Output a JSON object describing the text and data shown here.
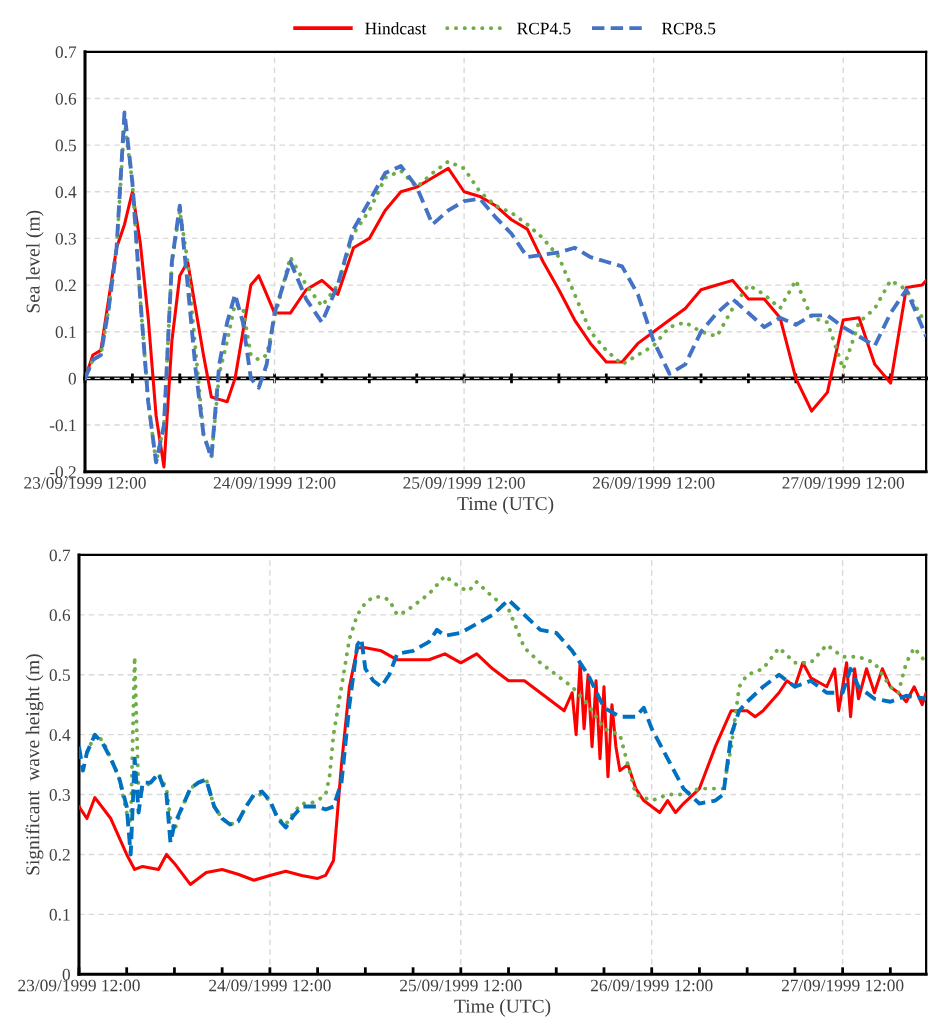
{
  "chart_data": [
    {
      "type": "line",
      "xlabel": "Time (UTC)",
      "ylabel": "Sea level (m)",
      "legend": "top",
      "grid": true,
      "xlim": [
        "1999-09-23T12:00",
        "1999-09-27T22:30"
      ],
      "ylim": [
        -0.2,
        0.7
      ],
      "yticks": [
        -0.2,
        -0.1,
        0,
        0.1,
        0.2,
        0.3,
        0.4,
        0.5,
        0.6,
        0.7
      ],
      "xticks": [
        {
          "value": "1999-09-23T12:00",
          "label": "23/09/1999 12:00"
        },
        {
          "value": "1999-09-23T18:00",
          "label": null
        },
        {
          "value": "1999-09-24T00:00",
          "label": null
        },
        {
          "value": "1999-09-24T06:00",
          "label": null
        },
        {
          "value": "1999-09-24T12:00",
          "label": "24/09/1999 12:00"
        },
        {
          "value": "1999-09-24T18:00",
          "label": null
        },
        {
          "value": "1999-09-25T00:00",
          "label": null
        },
        {
          "value": "1999-09-25T06:00",
          "label": null
        },
        {
          "value": "1999-09-25T12:00",
          "label": "25/09/1999 12:00"
        },
        {
          "value": "1999-09-25T18:00",
          "label": null
        },
        {
          "value": "1999-09-26T00:00",
          "label": null
        },
        {
          "value": "1999-09-26T06:00",
          "label": null
        },
        {
          "value": "1999-09-26T12:00",
          "label": "26/09/1999 12:00"
        },
        {
          "value": "1999-09-26T18:00",
          "label": null
        },
        {
          "value": "1999-09-27T00:00",
          "label": null
        },
        {
          "value": "1999-09-27T06:00",
          "label": null
        },
        {
          "value": "1999-09-27T12:00",
          "label": "27/09/1999 12:00"
        },
        {
          "value": "1999-09-27T18:00",
          "label": null
        }
      ],
      "ref_lines": [
        {
          "axis": "y",
          "value": 0,
          "color": "#000000"
        }
      ],
      "x": [
        "1999-09-23T12:00",
        "1999-09-23T13:00",
        "1999-09-23T14:00",
        "1999-09-23T15:00",
        "1999-09-23T16:00",
        "1999-09-23T17:00",
        "1999-09-23T18:00",
        "1999-09-23T19:00",
        "1999-09-23T20:00",
        "1999-09-23T21:00",
        "1999-09-23T22:00",
        "1999-09-23T23:00",
        "1999-09-24T00:00",
        "1999-09-24T01:00",
        "1999-09-24T02:00",
        "1999-09-24T03:00",
        "1999-09-24T04:00",
        "1999-09-24T05:00",
        "1999-09-24T06:00",
        "1999-09-24T07:00",
        "1999-09-24T08:00",
        "1999-09-24T09:00",
        "1999-09-24T10:00",
        "1999-09-24T11:00",
        "1999-09-24T12:00",
        "1999-09-24T14:00",
        "1999-09-24T16:00",
        "1999-09-24T18:00",
        "1999-09-24T20:00",
        "1999-09-24T22:00",
        "1999-09-25T00:00",
        "1999-09-25T02:00",
        "1999-09-25T04:00",
        "1999-09-25T06:00",
        "1999-09-25T08:00",
        "1999-09-25T10:00",
        "1999-09-25T12:00",
        "1999-09-25T14:00",
        "1999-09-25T16:00",
        "1999-09-25T18:00",
        "1999-09-25T20:00",
        "1999-09-25T22:00",
        "1999-09-26T00:00",
        "1999-09-26T02:00",
        "1999-09-26T04:00",
        "1999-09-26T06:00",
        "1999-09-26T08:00",
        "1999-09-26T10:00",
        "1999-09-26T12:00",
        "1999-09-26T14:00",
        "1999-09-26T16:00",
        "1999-09-26T18:00",
        "1999-09-26T20:00",
        "1999-09-26T22:00",
        "1999-09-27T00:00",
        "1999-09-27T02:00",
        "1999-09-27T04:00",
        "1999-09-27T06:00",
        "1999-09-27T08:00",
        "1999-09-27T10:00",
        "1999-09-27T12:00",
        "1999-09-27T14:00",
        "1999-09-27T16:00",
        "1999-09-27T18:00",
        "1999-09-27T20:00",
        "1999-09-27T22:00",
        "1999-09-27T22:30"
      ],
      "series": [
        {
          "name": "Hindcast",
          "color": "#ff0000",
          "line_style": "solid",
          "values": [
            0,
            0.05,
            0.06,
            0.17,
            0.28,
            0.33,
            0.4,
            0.29,
            0.13,
            -0.08,
            -0.19,
            0.08,
            0.22,
            0.25,
            0.15,
            0.05,
            -0.04,
            -0.045,
            -0.05,
            0.0,
            0.1,
            0.2,
            0.22,
            0.18,
            0.14,
            0.14,
            0.19,
            0.21,
            0.18,
            0.28,
            0.3,
            0.36,
            0.4,
            0.41,
            0.43,
            0.45,
            0.4,
            0.39,
            0.37,
            0.34,
            0.32,
            0.25,
            0.19,
            0.125,
            0.075,
            0.035,
            0.035,
            0.075,
            0.1,
            0.125,
            0.15,
            0.19,
            0.2,
            0.21,
            0.17,
            0.17,
            0.13,
            0.0,
            -0.07,
            -0.03,
            0.125,
            0.13,
            0.03,
            -0.01,
            0.195,
            0.2,
            0.21
          ]
        },
        {
          "name": "RCP4.5",
          "color": "#70ad47",
          "line_style": "dotted",
          "values": [
            0,
            0.04,
            0.05,
            0.15,
            0.28,
            0.55,
            0.42,
            0.17,
            -0.05,
            -0.18,
            -0.1,
            0.25,
            0.36,
            0.25,
            0.06,
            -0.12,
            -0.17,
            0.01,
            0.08,
            0.16,
            0.15,
            0.05,
            0.04,
            0.05,
            0.13,
            0.26,
            0.2,
            0.155,
            0.2,
            0.31,
            0.36,
            0.43,
            0.445,
            0.41,
            0.44,
            0.465,
            0.45,
            0.4,
            0.37,
            0.355,
            0.33,
            0.3,
            0.26,
            0.18,
            0.1,
            0.06,
            0.03,
            0.05,
            0.07,
            0.11,
            0.12,
            0.1,
            0.09,
            0.15,
            0.2,
            0.18,
            0.15,
            0.21,
            0.13,
            0.12,
            0.02,
            0.12,
            0.15,
            0.21,
            0.19,
            0.13,
            0.12
          ]
        },
        {
          "name": "RCP8.5",
          "color": "#4472c4",
          "line_style": "dashed",
          "values": [
            0,
            0.04,
            0.05,
            0.15,
            0.28,
            0.57,
            0.42,
            0.17,
            -0.05,
            -0.18,
            -0.1,
            0.25,
            0.37,
            0.2,
            0.02,
            -0.12,
            -0.17,
            0.03,
            0.12,
            0.18,
            0.12,
            0.0,
            -0.02,
            0.03,
            0.14,
            0.25,
            0.17,
            0.12,
            0.2,
            0.32,
            0.38,
            0.44,
            0.455,
            0.41,
            0.33,
            0.36,
            0.38,
            0.385,
            0.345,
            0.31,
            0.26,
            0.265,
            0.27,
            0.28,
            0.26,
            0.25,
            0.24,
            0.18,
            0.08,
            0.01,
            0.03,
            0.1,
            0.14,
            0.17,
            0.14,
            0.11,
            0.13,
            0.115,
            0.135,
            0.135,
            0.11,
            0.09,
            0.07,
            0.14,
            0.19,
            0.11,
            0.09
          ]
        }
      ]
    },
    {
      "type": "line",
      "xlabel": "Time (UTC)",
      "ylabel": "Significant  wave height (m)",
      "grid": true,
      "xlim": [
        "1999-09-23T12:00",
        "1999-09-27T22:30"
      ],
      "ylim": [
        0,
        0.7
      ],
      "yticks": [
        0,
        0.1,
        0.2,
        0.3,
        0.4,
        0.5,
        0.6,
        0.7
      ],
      "xticks": [
        {
          "value": "1999-09-23T12:00",
          "label": "23/09/1999 12:00"
        },
        {
          "value": "1999-09-23T18:00",
          "label": null
        },
        {
          "value": "1999-09-24T00:00",
          "label": null
        },
        {
          "value": "1999-09-24T06:00",
          "label": null
        },
        {
          "value": "1999-09-24T12:00",
          "label": "24/09/1999 12:00"
        },
        {
          "value": "1999-09-24T18:00",
          "label": null
        },
        {
          "value": "1999-09-25T00:00",
          "label": null
        },
        {
          "value": "1999-09-25T06:00",
          "label": null
        },
        {
          "value": "1999-09-25T12:00",
          "label": "25/09/1999 12:00"
        },
        {
          "value": "1999-09-25T18:00",
          "label": null
        },
        {
          "value": "1999-09-26T00:00",
          "label": null
        },
        {
          "value": "1999-09-26T06:00",
          "label": null
        },
        {
          "value": "1999-09-26T12:00",
          "label": "26/09/1999 12:00"
        },
        {
          "value": "1999-09-26T18:00",
          "label": null
        },
        {
          "value": "1999-09-27T00:00",
          "label": null
        },
        {
          "value": "1999-09-27T06:00",
          "label": null
        },
        {
          "value": "1999-09-27T12:00",
          "label": "27/09/1999 12:00"
        },
        {
          "value": "1999-09-27T18:00",
          "label": null
        }
      ],
      "series": [
        {
          "color": "#ff0000",
          "line_style": "solid",
          "x": [
            "1999-09-23T12:00",
            "1999-09-23T13:00",
            "1999-09-23T14:00",
            "1999-09-23T16:00",
            "1999-09-23T18:00",
            "1999-09-23T19:00",
            "1999-09-23T20:00",
            "1999-09-23T22:00",
            "1999-09-23T23:00",
            "1999-09-24T00:00",
            "1999-09-24T02:00",
            "1999-09-24T04:00",
            "1999-09-24T06:00",
            "1999-09-24T08:00",
            "1999-09-24T10:00",
            "1999-09-24T12:00",
            "1999-09-24T14:00",
            "1999-09-24T16:00",
            "1999-09-24T18:00",
            "1999-09-24T19:00",
            "1999-09-24T20:00",
            "1999-09-24T21:00",
            "1999-09-24T22:00",
            "1999-09-24T23:00",
            "1999-09-25T00:00",
            "1999-09-25T02:00",
            "1999-09-25T04:00",
            "1999-09-25T06:00",
            "1999-09-25T08:00",
            "1999-09-25T10:00",
            "1999-09-25T12:00",
            "1999-09-25T14:00",
            "1999-09-25T16:00",
            "1999-09-25T18:00",
            "1999-09-25T20:00",
            "1999-09-25T22:00",
            "1999-09-26T00:00",
            "1999-09-26T01:00",
            "1999-09-26T02:00",
            "1999-09-26T02:30",
            "1999-09-26T03:00",
            "1999-09-26T03:30",
            "1999-09-26T04:00",
            "1999-09-26T04:30",
            "1999-09-26T05:00",
            "1999-09-26T05:30",
            "1999-09-26T06:00",
            "1999-09-26T06:30",
            "1999-09-26T07:00",
            "1999-09-26T07:30",
            "1999-09-26T08:00",
            "1999-09-26T09:00",
            "1999-09-26T10:00",
            "1999-09-26T11:00",
            "1999-09-26T12:00",
            "1999-09-26T13:00",
            "1999-09-26T14:00",
            "1999-09-26T15:00",
            "1999-09-26T16:00",
            "1999-09-26T18:00",
            "1999-09-26T20:00",
            "1999-09-26T22:00",
            "1999-09-27T00:00",
            "1999-09-27T01:00",
            "1999-09-27T02:00",
            "1999-09-27T04:00",
            "1999-09-27T05:00",
            "1999-09-27T06:00",
            "1999-09-27T07:00",
            "1999-09-27T08:00",
            "1999-09-27T10:00",
            "1999-09-27T11:00",
            "1999-09-27T11:30",
            "1999-09-27T12:00",
            "1999-09-27T12:30",
            "1999-09-27T13:00",
            "1999-09-27T13:30",
            "1999-09-27T14:00",
            "1999-09-27T15:00",
            "1999-09-27T16:00",
            "1999-09-27T17:00",
            "1999-09-27T18:00",
            "1999-09-27T19:00",
            "1999-09-27T20:00",
            "1999-09-27T21:00",
            "1999-09-27T22:00",
            "1999-09-27T22:30"
          ],
          "values": [
            0.28,
            0.26,
            0.295,
            0.26,
            0.2,
            0.175,
            0.18,
            0.175,
            0.2,
            0.185,
            0.15,
            0.17,
            0.175,
            0.167,
            0.157,
            0.165,
            0.172,
            0.165,
            0.16,
            0.165,
            0.19,
            0.35,
            0.48,
            0.545,
            0.545,
            0.54,
            0.525,
            0.525,
            0.525,
            0.535,
            0.52,
            0.535,
            0.51,
            0.49,
            0.49,
            0.47,
            0.45,
            0.44,
            0.47,
            0.4,
            0.52,
            0.41,
            0.5,
            0.38,
            0.49,
            0.36,
            0.48,
            0.33,
            0.45,
            0.38,
            0.34,
            0.35,
            0.31,
            0.29,
            0.28,
            0.27,
            0.29,
            0.27,
            0.285,
            0.31,
            0.38,
            0.44,
            0.44,
            0.43,
            0.44,
            0.47,
            0.49,
            0.48,
            0.52,
            0.495,
            0.48,
            0.51,
            0.44,
            0.48,
            0.52,
            0.43,
            0.51,
            0.46,
            0.51,
            0.47,
            0.51,
            0.48,
            0.47,
            0.455,
            0.48,
            0.45,
            0.47
          ]
        },
        {
          "color": "#70ad47",
          "line_style": "dotted",
          "x": [
            "1999-09-23T12:00",
            "1999-09-23T13:00",
            "1999-09-23T14:00",
            "1999-09-23T15:00",
            "1999-09-23T16:00",
            "1999-09-23T17:00",
            "1999-09-23T18:00",
            "1999-09-23T18:30",
            "1999-09-23T19:00",
            "1999-09-23T19:30",
            "1999-09-23T20:00",
            "1999-09-23T21:00",
            "1999-09-23T22:00",
            "1999-09-23T23:00",
            "1999-09-23T23:30",
            "1999-09-24T00:00",
            "1999-09-24T01:00",
            "1999-09-24T02:00",
            "1999-09-24T03:00",
            "1999-09-24T04:00",
            "1999-09-24T05:00",
            "1999-09-24T06:00",
            "1999-09-24T07:00",
            "1999-09-24T08:00",
            "1999-09-24T09:00",
            "1999-09-24T10:00",
            "1999-09-24T11:00",
            "1999-09-24T12:00",
            "1999-09-24T13:00",
            "1999-09-24T14:00",
            "1999-09-24T15:00",
            "1999-09-24T16:00",
            "1999-09-24T17:00",
            "1999-09-24T18:00",
            "1999-09-24T19:00",
            "1999-09-24T19:30",
            "1999-09-24T20:00",
            "1999-09-24T21:00",
            "1999-09-24T22:00",
            "1999-09-24T23:00",
            "1999-09-25T00:00",
            "1999-09-25T01:00",
            "1999-09-25T02:00",
            "1999-09-25T03:00",
            "1999-09-25T04:00",
            "1999-09-25T05:00",
            "1999-09-25T06:00",
            "1999-09-25T07:00",
            "1999-09-25T08:00",
            "1999-09-25T09:00",
            "1999-09-25T10:00",
            "1999-09-25T11:00",
            "1999-09-25T12:00",
            "1999-09-25T13:00",
            "1999-09-25T14:00",
            "1999-09-25T16:00",
            "1999-09-25T18:00",
            "1999-09-25T20:00",
            "1999-09-25T22:00",
            "1999-09-26T00:00",
            "1999-09-26T02:00",
            "1999-09-26T04:00",
            "1999-09-26T06:00",
            "1999-09-26T08:00",
            "1999-09-26T10:00",
            "1999-09-26T12:00",
            "1999-09-26T14:00",
            "1999-09-26T16:00",
            "1999-09-26T18:00",
            "1999-09-26T20:00",
            "1999-09-26T21:00",
            "1999-09-26T22:00",
            "1999-09-26T23:00",
            "1999-09-27T00:00",
            "1999-09-27T02:00",
            "1999-09-27T04:00",
            "1999-09-27T06:00",
            "1999-09-27T08:00",
            "1999-09-27T10:00",
            "1999-09-27T12:00",
            "1999-09-27T14:00",
            "1999-09-27T16:00",
            "1999-09-27T18:00",
            "1999-09-27T19:00",
            "1999-09-27T20:00",
            "1999-09-27T21:00",
            "1999-09-27T22:30"
          ],
          "values": [
            0.37,
            0.37,
            0.4,
            0.39,
            0.36,
            0.33,
            0.27,
            0.25,
            0.53,
            0.3,
            0.31,
            0.32,
            0.335,
            0.31,
            0.26,
            0.24,
            0.28,
            0.31,
            0.32,
            0.325,
            0.28,
            0.26,
            0.25,
            0.255,
            0.28,
            0.3,
            0.3,
            0.29,
            0.26,
            0.25,
            0.27,
            0.285,
            0.285,
            0.29,
            0.3,
            0.33,
            0.4,
            0.48,
            0.56,
            0.6,
            0.62,
            0.63,
            0.63,
            0.625,
            0.6,
            0.605,
            0.615,
            0.625,
            0.635,
            0.65,
            0.665,
            0.655,
            0.645,
            0.64,
            0.655,
            0.63,
            0.61,
            0.545,
            0.52,
            0.5,
            0.48,
            0.45,
            0.41,
            0.4,
            0.3,
            0.29,
            0.3,
            0.3,
            0.31,
            0.31,
            0.31,
            0.38,
            0.48,
            0.5,
            0.51,
            0.545,
            0.52,
            0.52,
            0.55,
            0.53,
            0.53,
            0.52,
            0.48,
            0.47,
            0.52,
            0.545,
            0.52
          ]
        },
        {
          "color": "#0070c0",
          "line_style": "dashed",
          "x": [
            "1999-09-23T12:00",
            "1999-09-23T12:30",
            "1999-09-23T13:00",
            "1999-09-23T14:00",
            "1999-09-23T15:00",
            "1999-09-23T16:00",
            "1999-09-23T17:00",
            "1999-09-23T18:00",
            "1999-09-23T18:30",
            "1999-09-23T19:00",
            "1999-09-23T19:30",
            "1999-09-23T20:00",
            "1999-09-23T21:00",
            "1999-09-23T22:00",
            "1999-09-23T23:00",
            "1999-09-23T23:30",
            "1999-09-24T00:00",
            "1999-09-24T01:00",
            "1999-09-24T02:00",
            "1999-09-24T03:00",
            "1999-09-24T04:00",
            "1999-09-24T05:00",
            "1999-09-24T06:00",
            "1999-09-24T07:00",
            "1999-09-24T08:00",
            "1999-09-24T09:00",
            "1999-09-24T10:00",
            "1999-09-24T11:00",
            "1999-09-24T12:00",
            "1999-09-24T13:00",
            "1999-09-24T14:00",
            "1999-09-24T15:00",
            "1999-09-24T16:00",
            "1999-09-24T17:00",
            "1999-09-24T18:00",
            "1999-09-24T19:00",
            "1999-09-24T20:00",
            "1999-09-24T21:00",
            "1999-09-24T22:00",
            "1999-09-24T23:00",
            "1999-09-24T23:30",
            "1999-09-25T00:00",
            "1999-09-25T01:00",
            "1999-09-25T02:00",
            "1999-09-25T03:00",
            "1999-09-25T04:00",
            "1999-09-25T06:00",
            "1999-09-25T08:00",
            "1999-09-25T09:00",
            "1999-09-25T10:00",
            "1999-09-25T12:00",
            "1999-09-25T14:00",
            "1999-09-25T16:00",
            "1999-09-25T18:00",
            "1999-09-25T20:00",
            "1999-09-25T22:00",
            "1999-09-26T00:00",
            "1999-09-26T02:00",
            "1999-09-26T04:00",
            "1999-09-26T06:00",
            "1999-09-26T08:00",
            "1999-09-26T10:00",
            "1999-09-26T11:00",
            "1999-09-26T12:00",
            "1999-09-26T14:00",
            "1999-09-26T16:00",
            "1999-09-26T18:00",
            "1999-09-26T20:00",
            "1999-09-26T21:00",
            "1999-09-26T22:00",
            "1999-09-26T23:00",
            "1999-09-27T00:00",
            "1999-09-27T02:00",
            "1999-09-27T04:00",
            "1999-09-27T06:00",
            "1999-09-27T08:00",
            "1999-09-27T10:00",
            "1999-09-27T12:00",
            "1999-09-27T13:00",
            "1999-09-27T14:00",
            "1999-09-27T16:00",
            "1999-09-27T18:00",
            "1999-09-27T20:00",
            "1999-09-27T22:30"
          ],
          "values": [
            0.38,
            0.34,
            0.37,
            0.4,
            0.385,
            0.36,
            0.33,
            0.28,
            0.2,
            0.36,
            0.27,
            0.32,
            0.32,
            0.335,
            0.3,
            0.22,
            0.25,
            0.28,
            0.31,
            0.32,
            0.325,
            0.28,
            0.26,
            0.25,
            0.255,
            0.28,
            0.3,
            0.305,
            0.29,
            0.26,
            0.245,
            0.265,
            0.28,
            0.28,
            0.28,
            0.275,
            0.28,
            0.32,
            0.45,
            0.55,
            0.56,
            0.51,
            0.49,
            0.48,
            0.5,
            0.535,
            0.54,
            0.555,
            0.575,
            0.565,
            0.57,
            0.585,
            0.6,
            0.625,
            0.6,
            0.575,
            0.57,
            0.54,
            0.5,
            0.445,
            0.43,
            0.43,
            0.445,
            0.41,
            0.36,
            0.31,
            0.285,
            0.29,
            0.3,
            0.4,
            0.44,
            0.455,
            0.48,
            0.5,
            0.48,
            0.49,
            0.47,
            0.47,
            0.51,
            0.48,
            0.46,
            0.455,
            0.465,
            0.46
          ]
        }
      ]
    }
  ]
}
